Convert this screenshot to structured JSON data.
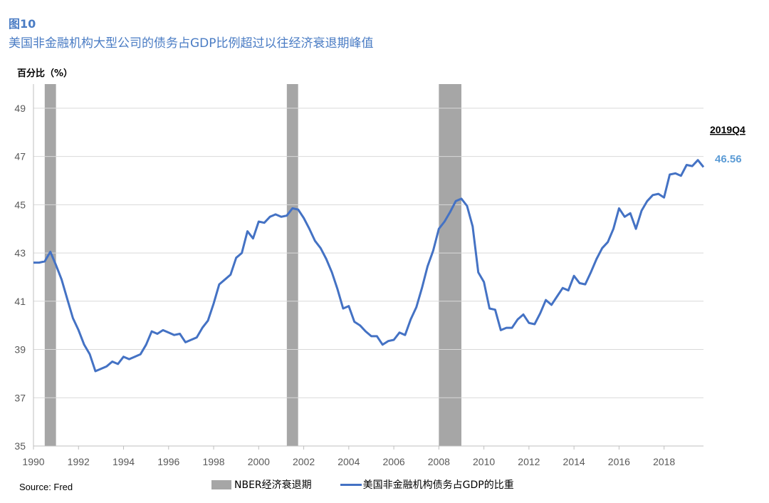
{
  "figure": {
    "label": "图10",
    "title": "美国非金融机构大型公司的债务占GDP比例超过以往经济衰退期峰值",
    "source": "Source: Fred"
  },
  "legend": {
    "recession": "NBER经济衰退期",
    "series": "美国非金融机构债务占GDP的比重"
  },
  "colors": {
    "title": "#4a7cc4",
    "line": "#4472c4",
    "recession": "#a6a6a6",
    "grid": "#d9d9d9",
    "annotation": "#5b9bd5"
  },
  "chart_data": {
    "type": "line",
    "ylabel": "百分比（%）",
    "xlim": [
      1990,
      2019.75
    ],
    "ylim": [
      35,
      50
    ],
    "x_ticks": [
      "1990",
      "1992",
      "1994",
      "1996",
      "1998",
      "2000",
      "2002",
      "2004",
      "2006",
      "2008",
      "2010",
      "2012",
      "2014",
      "2016",
      "2018"
    ],
    "y_ticks": [
      "35",
      "37",
      "39",
      "41",
      "43",
      "45",
      "47",
      "49"
    ],
    "grid": "horizontal",
    "recessions": [
      [
        1990.5,
        1991.0
      ],
      [
        2001.25,
        2001.75
      ],
      [
        2008.0,
        2009.0
      ]
    ],
    "annotations": {
      "period": "2019Q4",
      "last_value": "46.56"
    },
    "series": [
      {
        "name": "美国非金融机构债务占GDP的比重",
        "x": [
          1990,
          1990.25,
          1990.5,
          1990.75,
          1991,
          1991.25,
          1991.5,
          1991.75,
          1992,
          1992.25,
          1992.5,
          1992.75,
          1993,
          1993.25,
          1993.5,
          1993.75,
          1994,
          1994.25,
          1994.5,
          1994.75,
          1995,
          1995.25,
          1995.5,
          1995.75,
          1996,
          1996.25,
          1996.5,
          1996.75,
          1997,
          1997.25,
          1997.5,
          1997.75,
          1998,
          1998.25,
          1998.5,
          1998.75,
          1999,
          1999.25,
          1999.5,
          1999.75,
          2000,
          2000.25,
          2000.5,
          2000.75,
          2001,
          2001.25,
          2001.5,
          2001.75,
          2002,
          2002.25,
          2002.5,
          2002.75,
          2003,
          2003.25,
          2003.5,
          2003.75,
          2004,
          2004.25,
          2004.5,
          2004.75,
          2005,
          2005.25,
          2005.5,
          2005.75,
          2006,
          2006.25,
          2006.5,
          2006.75,
          2007,
          2007.25,
          2007.5,
          2007.75,
          2008,
          2008.25,
          2008.5,
          2008.75,
          2009,
          2009.25,
          2009.5,
          2009.75,
          2010,
          2010.25,
          2010.5,
          2010.75,
          2011,
          2011.25,
          2011.5,
          2011.75,
          2012,
          2012.25,
          2012.5,
          2012.75,
          2013,
          2013.25,
          2013.5,
          2013.75,
          2014,
          2014.25,
          2014.5,
          2014.75,
          2015,
          2015.25,
          2015.5,
          2015.75,
          2016,
          2016.25,
          2016.5,
          2016.75,
          2017,
          2017.25,
          2017.5,
          2017.75,
          2018,
          2018.25,
          2018.5,
          2018.75,
          2019,
          2019.25,
          2019.5,
          2019.75
        ],
        "values": [
          42.6,
          42.6,
          42.65,
          43.05,
          42.5,
          41.9,
          41.1,
          40.3,
          39.8,
          39.2,
          38.8,
          38.1,
          38.2,
          38.3,
          38.5,
          38.4,
          38.7,
          38.6,
          38.7,
          38.8,
          39.2,
          39.75,
          39.65,
          39.8,
          39.7,
          39.6,
          39.65,
          39.3,
          39.4,
          39.5,
          39.9,
          40.2,
          40.9,
          41.7,
          41.9,
          42.1,
          42.8,
          43.0,
          43.9,
          43.6,
          44.3,
          44.25,
          44.5,
          44.6,
          44.5,
          44.55,
          44.85,
          44.8,
          44.45,
          44.0,
          43.5,
          43.2,
          42.75,
          42.2,
          41.5,
          40.7,
          40.8,
          40.15,
          40.0,
          39.75,
          39.55,
          39.55,
          39.2,
          39.35,
          39.4,
          39.7,
          39.6,
          40.25,
          40.75,
          41.55,
          42.45,
          43.1,
          44.0,
          44.3,
          44.7,
          45.15,
          45.25,
          44.95,
          44.1,
          42.2,
          41.8,
          40.7,
          40.65,
          39.8,
          39.9,
          39.9,
          40.25,
          40.45,
          40.1,
          40.05,
          40.5,
          41.05,
          40.85,
          41.2,
          41.55,
          41.45,
          42.05,
          41.75,
          41.7,
          42.2,
          42.75,
          43.2,
          43.45,
          44.0,
          44.85,
          44.5,
          44.65,
          44.0,
          44.75,
          45.15,
          45.4,
          45.45,
          45.3,
          46.25,
          46.3,
          46.2,
          46.65,
          46.6,
          46.85,
          46.56
        ]
      }
    ]
  }
}
